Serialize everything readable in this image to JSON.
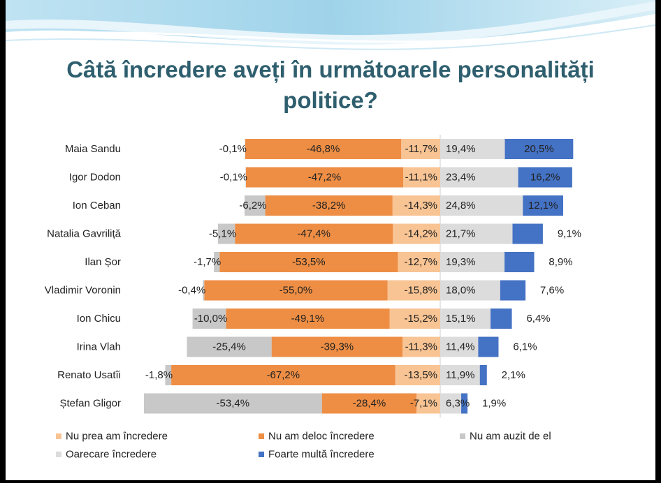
{
  "slide": {
    "title_line1": "Câtă încredere aveți în următoarele personalități",
    "title_line2": "politice?"
  },
  "colors": {
    "nu_prea": "#f8c494",
    "deloc": "#ee8e44",
    "nu_auzit": "#c8c8c8",
    "oarecare": "#dcdcdc",
    "foarte": "#4472c4",
    "title": "#2f5f6e"
  },
  "chart_data": {
    "type": "bar",
    "orientation": "horizontal",
    "stacking": "diverging",
    "categories": [
      "Maia Sandu",
      "Igor Dodon",
      "Ion Ceban",
      "Natalia Gavriliță",
      "Ilan Șor",
      "Vladimir Voronin",
      "Ion Chicu",
      "Irina Vlah",
      "Renato Usatîi",
      "Ștefan Gligor"
    ],
    "series": [
      {
        "name": "Nu prea am încredere",
        "key": "nu_prea",
        "side": "negative",
        "values": [
          -11.7,
          -11.1,
          -14.3,
          -14.2,
          -12.7,
          -15.8,
          -15.2,
          -11.3,
          -13.5,
          -7.1
        ],
        "labels": [
          "-11,7%",
          "-11,1%",
          "-14,3%",
          "-14,2%",
          "-12,7%",
          "-15,8%",
          "-15,2%",
          "-11,3%",
          "-13,5%",
          "-7,1%"
        ]
      },
      {
        "name": "Nu am deloc încredere",
        "key": "deloc",
        "side": "negative",
        "values": [
          -46.8,
          -47.2,
          -38.2,
          -47.4,
          -53.5,
          -55.0,
          -49.1,
          -39.3,
          -67.2,
          -28.4
        ],
        "labels": [
          "-46,8%",
          "-47,2%",
          "-38,2%",
          "-47,4%",
          "-53,5%",
          "-55,0%",
          "-49,1%",
          "-39,3%",
          "-67,2%",
          "-28,4%"
        ]
      },
      {
        "name": "Nu am auzit de el",
        "key": "nu_auzit",
        "side": "negative",
        "values": [
          -0.1,
          -0.1,
          -6.2,
          -5.1,
          -1.7,
          -0.4,
          -10.0,
          -25.4,
          -1.8,
          -53.4
        ],
        "labels": [
          "-0,1%",
          "-0,1%",
          "-6,2%",
          "-5,1%",
          "-1,7%",
          "-0,4%",
          "-10,0%",
          "-25,4%",
          "-1,8%",
          "-53,4%"
        ]
      },
      {
        "name": "Oarecare încredere",
        "key": "oarecare",
        "side": "positive",
        "values": [
          19.4,
          23.4,
          24.8,
          21.7,
          19.3,
          18.0,
          15.1,
          11.4,
          11.9,
          6.3
        ],
        "labels": [
          "19,4%",
          "23,4%",
          "24,8%",
          "21,7%",
          "19,3%",
          "18,0%",
          "15,1%",
          "11,4%",
          "11,9%",
          "6,3%"
        ]
      },
      {
        "name": "Foarte multă încredere",
        "key": "foarte",
        "side": "positive",
        "values": [
          20.5,
          16.2,
          12.1,
          9.1,
          8.9,
          7.6,
          6.4,
          6.1,
          2.1,
          1.9
        ],
        "labels": [
          "20,5%",
          "16,2%",
          "12,1%",
          "9,1%",
          "8,9%",
          "7,6%",
          "6,4%",
          "6,1%",
          "2,1%",
          "1,9%"
        ]
      }
    ],
    "legend": [
      {
        "key": "nu_prea",
        "label": "Nu prea am încredere"
      },
      {
        "key": "deloc",
        "label": "Nu am deloc încredere"
      },
      {
        "key": "nu_auzit",
        "label": "Nu am auzit de el"
      },
      {
        "key": "oarecare",
        "label": "Oarecare încredere"
      },
      {
        "key": "foarte",
        "label": "Foarte multă încredere"
      }
    ],
    "legend_position": "bottom",
    "grid": false
  }
}
